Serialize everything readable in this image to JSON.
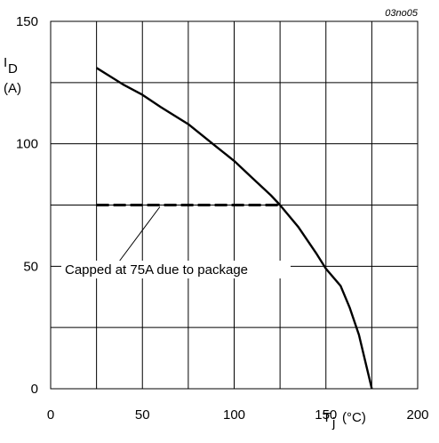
{
  "chart_data": {
    "type": "line",
    "figure_code": "03no05",
    "xlabel": "T",
    "xlabel_sub": "j",
    "xlabel_unit": "(°C)",
    "ylabel": "I",
    "ylabel_sub": "D",
    "ylabel_unit": "(A)",
    "xlim": [
      0,
      200
    ],
    "ylim": [
      0,
      150
    ],
    "x_ticks": [
      "0",
      "50",
      "100",
      "150",
      "200"
    ],
    "y_ticks": [
      "0",
      "50",
      "100",
      "150"
    ],
    "grid": true,
    "series": [
      {
        "style": "solid",
        "x": [
          25,
          40,
          50,
          60,
          75,
          90,
          100,
          110,
          120,
          125,
          135,
          145,
          150,
          158,
          163,
          168,
          175
        ],
        "y": [
          131,
          124,
          120,
          115,
          108,
          99,
          93,
          86,
          79,
          75,
          66,
          55,
          49,
          42,
          33,
          22,
          0
        ]
      },
      {
        "style": "dashed",
        "x": [
          25,
          125
        ],
        "y": [
          75,
          75
        ]
      }
    ],
    "annotation": {
      "text": "Capped at 75A due to package",
      "points_to": [
        60,
        75
      ]
    }
  }
}
